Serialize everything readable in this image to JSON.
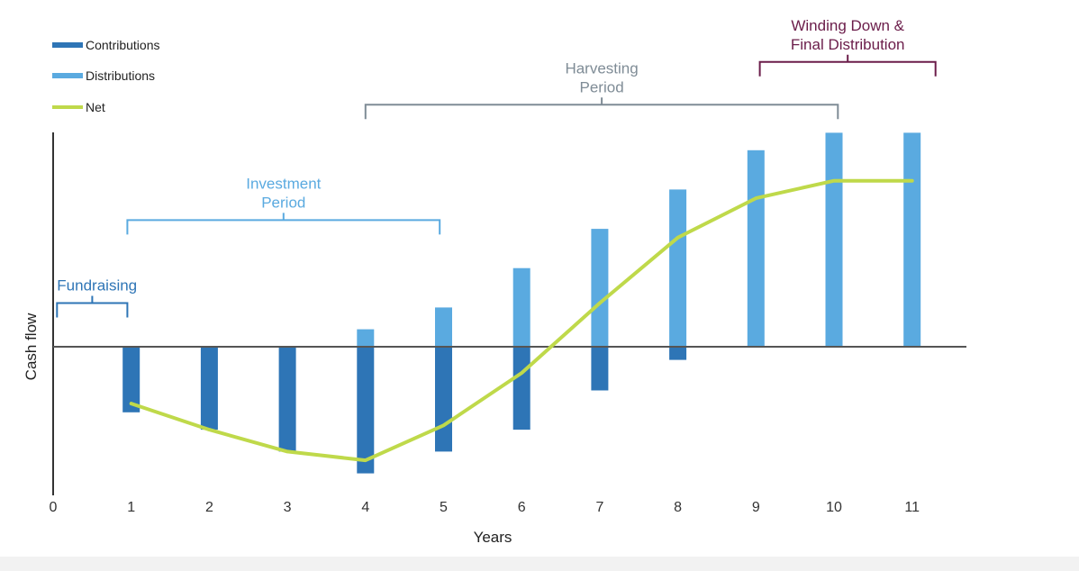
{
  "chart_data": {
    "type": "bar",
    "title": "",
    "xlabel": "Years",
    "ylabel": "Cash flow",
    "x": [
      0,
      1,
      2,
      3,
      4,
      5,
      6,
      7,
      8,
      9,
      10,
      11
    ],
    "x_ticks": [
      "0",
      "1",
      "2",
      "3",
      "4",
      "5",
      "6",
      "7",
      "8",
      "9",
      "10",
      "11"
    ],
    "xlim": [
      0,
      11.6
    ],
    "ylim": [
      -17,
      25
    ],
    "series": [
      {
        "name": "Contributions",
        "type": "bar",
        "color": "#2e75b6",
        "x": [
          1,
          2,
          3,
          4,
          5,
          6,
          7,
          8
        ],
        "values": [
          -7.5,
          -9.5,
          -12,
          -14.5,
          -12,
          -9.5,
          -5,
          -1.5
        ]
      },
      {
        "name": "Distributions",
        "type": "bar",
        "color": "#5aaae0",
        "x": [
          4,
          5,
          6,
          7,
          8,
          9,
          10,
          11
        ],
        "values": [
          2,
          4.5,
          9,
          13.5,
          18,
          22.5,
          24.5,
          24.5
        ]
      },
      {
        "name": "Net",
        "type": "line",
        "color": "#bfd94a",
        "x": [
          1,
          2,
          3,
          4,
          5,
          6,
          7,
          8,
          9,
          10,
          11
        ],
        "values": [
          -6.5,
          -9.5,
          -12,
          -13,
          -9,
          -3,
          5,
          12.5,
          17,
          19,
          19
        ]
      }
    ],
    "legend": {
      "placement": "top-left",
      "entries": [
        "Contributions",
        "Distributions",
        "Net"
      ]
    },
    "annotations": [
      {
        "name": "fundraising",
        "lines": [
          "Fundraising"
        ],
        "x_start": 0.05,
        "x_end": 0.95,
        "y": 5,
        "color": "#2e75b6"
      },
      {
        "name": "investment",
        "lines": [
          "Investment",
          "Period"
        ],
        "x_start": 0.95,
        "x_end": 4.95,
        "y": 14.5,
        "color": "#5aaae0"
      },
      {
        "name": "harvesting",
        "lines": [
          "Harvesting",
          "Period"
        ],
        "x_start": 4.0,
        "x_end": 10.05,
        "y": 27.7,
        "color": "#7f8c96"
      },
      {
        "name": "winding-down",
        "lines": [
          "Winding Down &",
          "Final Distribution"
        ],
        "x_start": 9.05,
        "x_end": 11.3,
        "y": 32.6,
        "color": "#6b1d4a"
      }
    ],
    "grid": false
  }
}
